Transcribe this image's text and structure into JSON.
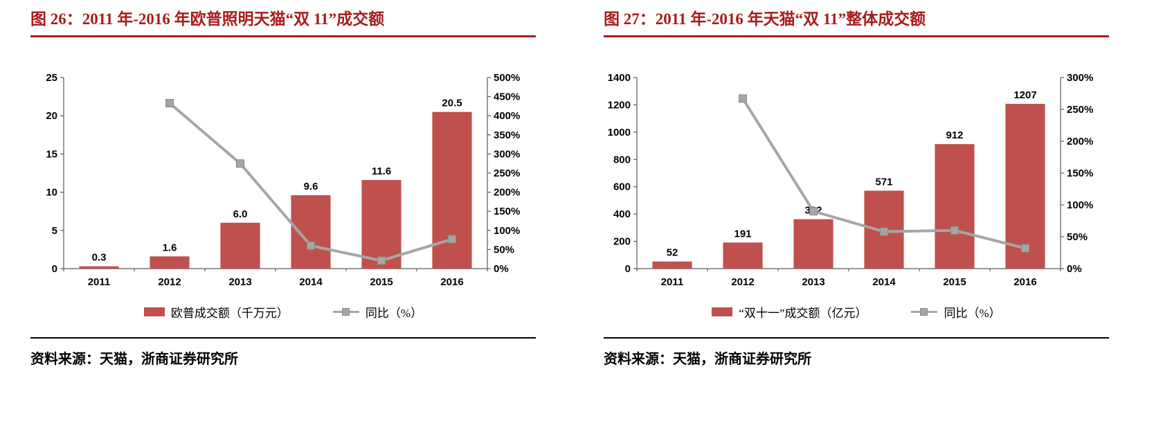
{
  "colors": {
    "title_red": "#A61C1C",
    "bar_red": "#C0504D",
    "line_gray": "#A6A6A6",
    "marker_gray": "#A6A6A6",
    "axis_gray": "#595959",
    "text_black": "#000000"
  },
  "chart_data": [
    {
      "type": "bar",
      "combo": "bar+line",
      "title": "图 26：2011 年-2016 年欧普照明天猫“双 11”成交额",
      "categories": [
        "2011",
        "2012",
        "2013",
        "2014",
        "2015",
        "2016"
      ],
      "series": [
        {
          "name": "欧普成交额（千万元）",
          "mark": "bar",
          "axis": "left",
          "values": [
            0.3,
            1.6,
            6.0,
            9.6,
            11.6,
            20.5
          ],
          "labels": [
            "0.3",
            "1.6",
            "6.0",
            "9.6",
            "11.6",
            "20.5"
          ]
        },
        {
          "name": "同比（%）",
          "mark": "line",
          "axis": "right",
          "values": [
            null,
            433,
            275,
            60,
            21,
            77
          ]
        }
      ],
      "left_axis": {
        "min": 0,
        "max": 25,
        "step": 5
      },
      "right_axis": {
        "min": 0,
        "max": 500,
        "step": 50,
        "suffix": "%"
      },
      "grid": false,
      "legend_position": "bottom",
      "source": "资料来源：天猫，浙商证券研究所"
    },
    {
      "type": "bar",
      "combo": "bar+line",
      "title": "图 27：2011 年-2016 年天猫“双 11”整体成交额",
      "categories": [
        "2011",
        "2012",
        "2013",
        "2014",
        "2015",
        "2016"
      ],
      "series": [
        {
          "name": "“双十一”成交额（亿元）",
          "mark": "bar",
          "axis": "left",
          "values": [
            52,
            191,
            362,
            571,
            912,
            1207
          ],
          "labels": [
            "52",
            "191",
            "362",
            "571",
            "912",
            "1207"
          ]
        },
        {
          "name": "同比（%）",
          "mark": "line",
          "axis": "right",
          "values": [
            null,
            267,
            90,
            58,
            60,
            32
          ]
        }
      ],
      "left_axis": {
        "min": 0,
        "max": 1400,
        "step": 200
      },
      "right_axis": {
        "min": 0,
        "max": 300,
        "step": 50,
        "suffix": "%"
      },
      "grid": false,
      "legend_position": "bottom",
      "source": "资料来源：天猫，浙商证券研究所"
    }
  ]
}
